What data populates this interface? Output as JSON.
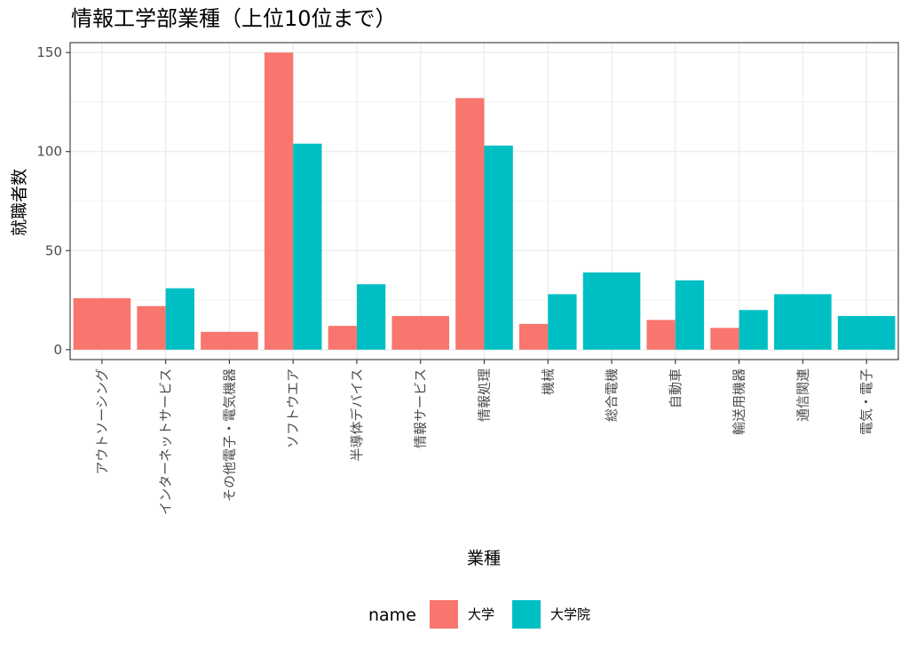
{
  "chart_data": {
    "type": "bar",
    "title": "情報工学部業種（上位10位まで）",
    "xlabel": "業種",
    "ylabel": "就職者数",
    "ylim": [
      -5,
      155
    ],
    "yticks": [
      0,
      50,
      100,
      150
    ],
    "grid": true,
    "legend": {
      "title": "name",
      "position": "bottom"
    },
    "categories": [
      "アウトソーシング",
      "インターネットサービス",
      "その他電子・電気機器",
      "ソフトウエア",
      "半導体デバイス",
      "情報サービス",
      "情報処理",
      "機械",
      "総合電機",
      "自動車",
      "輸送用機器",
      "通信関連",
      "電気・電子"
    ],
    "series": [
      {
        "name": "大学",
        "color": "#F8766D",
        "values": [
          26,
          22,
          9,
          150,
          12,
          17,
          127,
          13,
          null,
          15,
          11,
          null,
          null
        ]
      },
      {
        "name": "大学院",
        "color": "#00BFC4",
        "values": [
          null,
          31,
          null,
          104,
          33,
          null,
          103,
          28,
          39,
          35,
          20,
          28,
          17
        ]
      }
    ]
  }
}
